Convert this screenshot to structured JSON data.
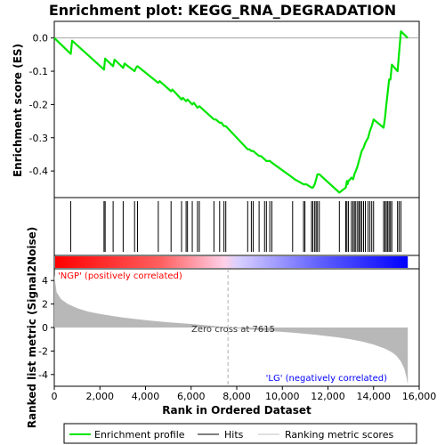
{
  "chart_data": {
    "type": "line",
    "title": "Enrichment plot: KEGG_RNA_DEGRADATION",
    "top_panel": {
      "ylabel": "Enrichment score (ES)",
      "ylim": [
        -0.48,
        0.05
      ],
      "yticks": [
        0.0,
        -0.1,
        -0.2,
        -0.3,
        -0.4
      ],
      "ytick_labels": [
        "0.0",
        "-0.1",
        "-0.2",
        "-0.3",
        "-0.4"
      ],
      "grid": false,
      "series": [
        {
          "name": "Enrichment profile",
          "color": "#00e600",
          "x": [
            0,
            720,
            780,
            2180,
            2230,
            2580,
            2640,
            3020,
            3080,
            3520,
            3580,
            3650,
            4560,
            4620,
            5120,
            5180,
            5580,
            5640,
            5780,
            5840,
            6050,
            6120,
            6280,
            6360,
            7000,
            7080,
            7250,
            7330,
            7440,
            7520,
            8480,
            8560,
            8640,
            8720,
            8980,
            9060,
            9220,
            9300,
            9380,
            9450,
            9540,
            10450,
            10540,
            10930,
            10990,
            11050,
            11280,
            11340,
            11420,
            11480,
            11540,
            11620,
            12500,
            12780,
            12830,
            12860,
            12900,
            13030,
            13100,
            13160,
            13220,
            13300,
            13360,
            13420,
            13480,
            13560,
            13640,
            13760,
            13840,
            13920,
            14000,
            14440,
            14500,
            14560,
            14620,
            14680,
            14740,
            14800,
            15050,
            15120,
            15200,
            15500
          ],
          "y": [
            0.0,
            -0.048,
            -0.008,
            -0.095,
            -0.062,
            -0.085,
            -0.065,
            -0.09,
            -0.077,
            -0.1,
            -0.09,
            -0.085,
            -0.135,
            -0.13,
            -0.16,
            -0.155,
            -0.185,
            -0.18,
            -0.19,
            -0.185,
            -0.2,
            -0.195,
            -0.21,
            -0.205,
            -0.245,
            -0.245,
            -0.255,
            -0.255,
            -0.265,
            -0.265,
            -0.335,
            -0.335,
            -0.34,
            -0.34,
            -0.355,
            -0.355,
            -0.365,
            -0.37,
            -0.37,
            -0.37,
            -0.375,
            -0.42,
            -0.425,
            -0.44,
            -0.44,
            -0.44,
            -0.45,
            -0.45,
            -0.44,
            -0.425,
            -0.41,
            -0.41,
            -0.465,
            -0.45,
            -0.43,
            -0.44,
            -0.43,
            -0.42,
            -0.425,
            -0.41,
            -0.4,
            -0.385,
            -0.37,
            -0.355,
            -0.34,
            -0.33,
            -0.315,
            -0.3,
            -0.28,
            -0.265,
            -0.245,
            -0.27,
            -0.24,
            -0.2,
            -0.165,
            -0.125,
            -0.125,
            -0.08,
            -0.1,
            -0.045,
            0.02,
            0.0
          ]
        }
      ]
    },
    "hits": [
      720,
      2180,
      2230,
      2580,
      3020,
      3520,
      3650,
      4560,
      5120,
      5580,
      5780,
      5840,
      6050,
      6280,
      6360,
      7000,
      7250,
      7440,
      7520,
      8480,
      8640,
      8720,
      8980,
      9220,
      9300,
      9450,
      9540,
      10450,
      10930,
      10990,
      11280,
      11340,
      11420,
      11480,
      11540,
      11620,
      12500,
      12780,
      12830,
      12900,
      13030,
      13100,
      13160,
      13220,
      13300,
      13360,
      13420,
      13480,
      13560,
      13640,
      13760,
      13840,
      13920,
      14000,
      14440,
      14500,
      14560,
      14620,
      14680,
      14740,
      14800,
      15050,
      15120,
      15200
    ],
    "bottom_panel": {
      "ylabel": "Ranked list metric (Signal2Noise)",
      "ylim": [
        -5,
        5
      ],
      "yticks": [
        4,
        2,
        0,
        -2,
        -4
      ],
      "ytick_labels": [
        "4",
        "2",
        "0",
        "-2",
        "-4"
      ],
      "metric_x": [
        0,
        100,
        300,
        600,
        1000,
        1500,
        2000,
        3000,
        4000,
        5000,
        6000,
        7000,
        7615,
        8500,
        9500,
        10500,
        11500,
        12500,
        13000,
        13500,
        14000,
        14500,
        14800,
        15000,
        15200,
        15350,
        15450,
        15500
      ],
      "metric_y": [
        4.5,
        3.0,
        2.4,
        2.0,
        1.65,
        1.35,
        1.15,
        0.85,
        0.62,
        0.45,
        0.3,
        0.13,
        0.0,
        -0.15,
        -0.3,
        -0.45,
        -0.62,
        -0.85,
        -1.0,
        -1.2,
        -1.45,
        -1.8,
        -2.1,
        -2.4,
        -2.9,
        -3.5,
        -4.3,
        -4.9
      ],
      "zero_cross": 7615,
      "zero_cross_label": "Zero cross at 7615",
      "pos_label": "'NGP' (positively correlated)",
      "neg_label": "'LG' (negatively correlated)"
    },
    "xlabel": "Rank in Ordered Dataset",
    "xlim": [
      0,
      16000
    ],
    "xticks": [
      0,
      2000,
      4000,
      6000,
      8000,
      10000,
      12000,
      14000,
      16000
    ],
    "xtick_labels": [
      "0",
      "2,000",
      "4,000",
      "6,000",
      "8,000",
      "10,000",
      "12,000",
      "14,000",
      "16,000"
    ],
    "n_genes": 15500,
    "legend": {
      "placement": "bottom",
      "items": [
        {
          "label": "Enrichment profile",
          "color": "#00e600"
        },
        {
          "label": "Hits",
          "color": "#000000"
        },
        {
          "label": "Ranking metric scores",
          "color": "#c0c0c0"
        }
      ]
    },
    "colors": {
      "profile": "#00e600",
      "metric_fill": "#b8b8b8",
      "pos_label": "#ff0000",
      "neg_label": "#0000ff",
      "heat_pos": "#ff0000",
      "heat_neg": "#0000ff"
    }
  }
}
